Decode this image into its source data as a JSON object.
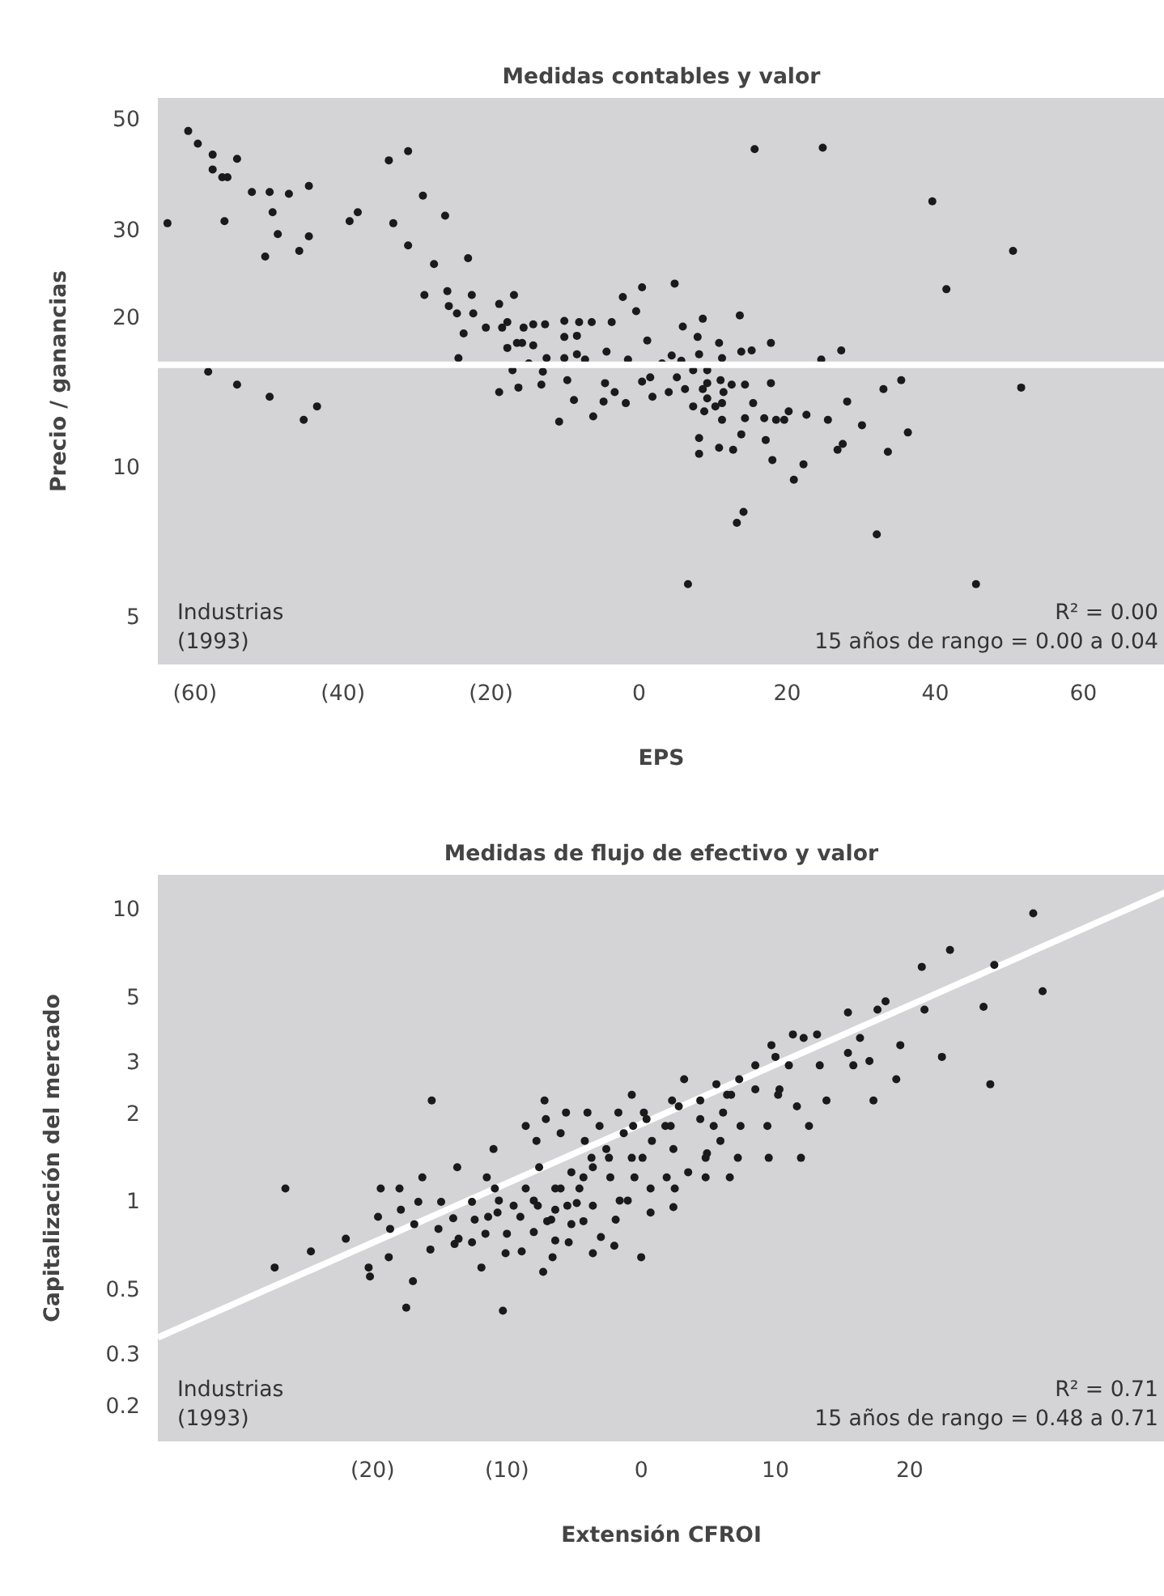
{
  "chart_data": [
    {
      "type": "scatter",
      "title": "Medidas contables y valor",
      "xlabel": "EPS",
      "ylabel": "Precio / ganancias",
      "log": "y",
      "grid": false,
      "xlim": [
        -65,
        71
      ],
      "ylim": [
        4,
        55
      ],
      "xticks": [
        {
          "value": -60,
          "label": "(60)"
        },
        {
          "value": -40,
          "label": "(40)"
        },
        {
          "value": -20,
          "label": "(20)"
        },
        0,
        20,
        40,
        60
      ],
      "yticks": [
        5,
        10,
        20,
        30,
        50
      ],
      "annotations": [
        "Industrias\n(1993)",
        "R² = 0.00\n15 años de rango = 0.00 a 0.04"
      ],
      "series": [
        {
          "marker": "circle",
          "color": "#1a1a1a",
          "x": [
            -63.7,
            -60.9,
            -59.6,
            -57.6,
            -57.6,
            -56.3,
            -55.6,
            -54.3,
            -56.0,
            -52.3,
            -49.9,
            -47.3,
            -44.6,
            -49.5,
            -48.8,
            -50.5,
            -45.9,
            -44.6,
            -39.1,
            -38.0,
            -33.8,
            -31.2,
            -29.2,
            -26.2,
            -33.2,
            -31.2,
            -27.7,
            -23.1,
            -29.0,
            -25.9,
            -25.7,
            -22.6,
            -22.4,
            -24.6,
            -23.7,
            -24.4,
            -20.7,
            -18.9,
            -16.9,
            -18.5,
            -17.8,
            -17.8,
            -16.5,
            -15.8,
            -15.6,
            -14.3,
            -12.7,
            -14.3,
            -14.9,
            -17.1,
            -18.9,
            -16.3,
            -13.2,
            -13.0,
            -12.5,
            -10.1,
            -8.1,
            -6.4,
            -3.7,
            -10.1,
            -8.4,
            -10.1,
            -8.4,
            -7.3,
            -9.7,
            -8.8,
            -10.8,
            -6.2,
            -4.8,
            -4.6,
            -3.3,
            -1.8,
            -4.4,
            -1.5,
            -2.2,
            0.4,
            -0.4,
            4.8,
            1.1,
            0.4,
            1.5,
            1.8,
            4.0,
            3.1,
            4.4,
            5.1,
            -58.2,
            -54.3,
            -49.9,
            -45.3,
            -43.5,
            15.6,
            24.8,
            39.6,
            50.5,
            41.5,
            5.9,
            8.6,
            7.9,
            10.8,
            13.6,
            5.7,
            8.1,
            11.2,
            13.8,
            15.2,
            17.8,
            24.6,
            27.3,
            7.3,
            9.2,
            6.2,
            8.6,
            9.2,
            11.0,
            12.5,
            14.3,
            17.8,
            33.0,
            35.4,
            7.3,
            8.8,
            9.2,
            10.3,
            11.2,
            11.4,
            15.4,
            14.3,
            11.2,
            16.9,
            18.5,
            19.6,
            20.2,
            22.6,
            25.5,
            28.1,
            30.1,
            8.1,
            8.1,
            10.8,
            12.7,
            13.8,
            17.1,
            18.0,
            20.9,
            22.2,
            26.8,
            27.5,
            33.6,
            36.3,
            51.6,
            13.2,
            14.1,
            32.1,
            6.6,
            45.5
          ],
          "values": [
            30.8,
            47.2,
            44.5,
            42.3,
            39.5,
            38.1,
            38.1,
            41.5,
            31.1,
            35.6,
            35.6,
            35.3,
            36.6,
            32.4,
            29.3,
            26.4,
            27.1,
            29.0,
            31.1,
            32.4,
            41.2,
            43.0,
            35.0,
            31.9,
            30.8,
            27.8,
            25.5,
            26.2,
            22.1,
            22.5,
            21.0,
            22.1,
            20.3,
            20.3,
            18.5,
            16.5,
            19.0,
            21.2,
            22.1,
            19.0,
            19.5,
            17.3,
            17.7,
            17.7,
            19.0,
            19.3,
            19.3,
            17.5,
            16.1,
            15.6,
            14.1,
            14.4,
            14.6,
            15.5,
            16.5,
            19.6,
            19.5,
            19.5,
            19.5,
            18.2,
            18.3,
            16.5,
            16.8,
            16.4,
            14.9,
            13.6,
            12.3,
            12.6,
            13.5,
            14.7,
            14.1,
            13.4,
            17.0,
            16.4,
            21.9,
            22.9,
            20.5,
            23.3,
            17.9,
            14.8,
            15.1,
            13.8,
            14.1,
            16.1,
            16.7,
            15.1,
            15.5,
            14.6,
            13.8,
            12.4,
            13.2,
            43.4,
            43.7,
            34.1,
            27.1,
            22.7,
            19.1,
            19.8,
            18.2,
            17.7,
            20.1,
            16.3,
            16.8,
            16.5,
            17.0,
            17.1,
            17.7,
            16.4,
            17.1,
            15.6,
            15.6,
            14.3,
            14.3,
            14.7,
            14.9,
            14.6,
            14.6,
            14.7,
            14.3,
            14.9,
            13.2,
            12.9,
            13.7,
            13.2,
            13.4,
            14.1,
            13.4,
            12.5,
            12.4,
            12.5,
            12.4,
            12.4,
            12.9,
            12.7,
            12.4,
            13.5,
            12.1,
            11.4,
            10.6,
            10.9,
            10.8,
            11.6,
            11.3,
            10.3,
            9.4,
            10.1,
            10.8,
            11.1,
            10.7,
            11.7,
            14.4,
            7.7,
            8.1,
            7.3,
            5.8,
            5.8
          ]
        },
        {
          "type": "line",
          "color": "#ffffff",
          "x": [
            -65,
            71
          ],
          "values": [
            16,
            16
          ]
        }
      ]
    },
    {
      "type": "scatter",
      "title": "Medidas de flujo de efectivo y valor",
      "xlabel": "Extensión CFROI",
      "ylabel": "Capitalización del mercado",
      "log": "y",
      "grid": false,
      "xlim": [
        -36,
        39
      ],
      "ylim": [
        0.15,
        13
      ],
      "xticks": [
        {
          "value": -20,
          "label": "(20)"
        },
        {
          "value": -10,
          "label": "(10)"
        },
        0,
        10,
        20
      ],
      "yticks": [
        0.2,
        0.3,
        0.5,
        1,
        2,
        3,
        5,
        10
      ],
      "annotations": [
        "Industrias\n(1993)",
        "R² = 0.71\n15 años de rango = 0.48 a 0.71"
      ],
      "series": [
        {
          "type": "line",
          "color": "#ffffff",
          "x": [
            -36,
            39
          ],
          "values": [
            0.34,
            11.3
          ]
        },
        {
          "marker": "circle",
          "color": "#1a1a1a",
          "x": [
            -15.6,
            -26.5,
            -7.2,
            -0.7,
            2.3,
            2.8,
            -8.6,
            -7.1,
            -5.6,
            -4.0,
            -1.7,
            0.2,
            -7.8,
            -6.0,
            -4.2,
            -3.1,
            -1.3,
            -0.6,
            0.4,
            1.8,
            2.2,
            -11.0,
            -13.7,
            -2.6,
            -2.4,
            -3.7,
            -0.7,
            0.1,
            0.8,
            2.4,
            -11.5,
            -10.9,
            -10.6,
            -16.3,
            -19.4,
            -18.0,
            -7.6,
            -5.2,
            -4.3,
            -3.6,
            -2.3,
            -0.5,
            1.9,
            2.5,
            0.7,
            -6.4,
            -6.0,
            -4.6,
            -8.6,
            -8.0,
            -1.6,
            -1.0,
            -9.5,
            -7.7,
            -6.4,
            -5.5,
            -4.8,
            -3.6,
            -19.6,
            -17.9,
            -16.6,
            -14.9,
            -12.6,
            -11.4,
            -12.4,
            -10.7,
            -18.7,
            -16.9,
            -15.1,
            -14.0,
            -9.0,
            -7.0,
            -6.7,
            -5.2,
            -4.3,
            -1.9,
            0.7,
            2.4,
            -8.0,
            -10.0,
            -11.6,
            -6.4,
            -3.0,
            -22.0,
            -13.6,
            29.2,
            23.0,
            26.3,
            20.9,
            29.9,
            21.1,
            25.5,
            18.2,
            17.6,
            15.4,
            19.3,
            16.3,
            15.4,
            17.0,
            15.8,
            22.4,
            11.3,
            12.1,
            13.1,
            9.7,
            10.0,
            11.0,
            13.3,
            8.5,
            19.0,
            26.0,
            17.3,
            13.8,
            3.2,
            5.6,
            7.3,
            6.4,
            6.7,
            8.5,
            10.3,
            10.2,
            11.6,
            12.5,
            4.4,
            6.1,
            4.4,
            5.4,
            5.9,
            7.4,
            9.4,
            4.8,
            4.9,
            7.2,
            9.5,
            11.9,
            3.5,
            4.8,
            6.6,
            -27.3,
            -24.6,
            -20.3,
            -20.2,
            -18.8,
            -17.5,
            -17.0,
            -15.7,
            -13.9,
            -12.6,
            -11.9,
            -10.3,
            -10.1,
            -8.9,
            -7.3,
            -6.6,
            -5.4,
            -3.6,
            -2.0,
            0
          ],
          "values": [
            2.2,
            1.1,
            2.2,
            2.3,
            2.2,
            2.1,
            1.8,
            1.9,
            2.0,
            2.0,
            2.0,
            2.0,
            1.6,
            1.7,
            1.6,
            1.8,
            1.7,
            1.8,
            1.9,
            1.8,
            1.8,
            1.5,
            1.3,
            1.5,
            1.4,
            1.4,
            1.4,
            1.4,
            1.6,
            1.5,
            1.2,
            1.1,
            1.0,
            1.2,
            1.1,
            1.1,
            1.3,
            1.25,
            1.2,
            1.3,
            1.2,
            1.2,
            1.2,
            1.1,
            1.1,
            1.1,
            1.1,
            1.1,
            1.1,
            1.0,
            1.0,
            1.0,
            0.96,
            0.96,
            0.93,
            0.96,
            0.98,
            0.96,
            0.88,
            0.93,
            0.99,
            0.99,
            0.99,
            0.88,
            0.86,
            0.91,
            0.8,
            0.83,
            0.8,
            0.87,
            0.88,
            0.85,
            0.86,
            0.83,
            0.85,
            0.86,
            0.91,
            0.95,
            0.78,
            0.77,
            0.77,
            0.73,
            0.75,
            0.74,
            0.74,
            9.6,
            7.2,
            6.4,
            6.3,
            5.2,
            4.5,
            4.6,
            4.8,
            4.5,
            4.4,
            3.4,
            3.6,
            3.2,
            3.0,
            2.9,
            3.1,
            3.7,
            3.6,
            3.7,
            3.4,
            3.1,
            2.9,
            2.9,
            2.9,
            2.6,
            2.5,
            2.2,
            2.2,
            2.6,
            2.5,
            2.6,
            2.3,
            2.3,
            2.4,
            2.4,
            2.3,
            2.1,
            1.8,
            2.2,
            2.0,
            1.9,
            1.8,
            1.6,
            1.8,
            1.8,
            1.4,
            1.45,
            1.4,
            1.4,
            1.4,
            1.25,
            1.2,
            1.2,
            0.59,
            0.67,
            0.59,
            0.55,
            0.64,
            0.43,
            0.53,
            0.68,
            0.71,
            0.72,
            0.59,
            0.42,
            0.66,
            0.67,
            0.57,
            0.64,
            0.72,
            0.66,
            0.7,
            0.64
          ]
        }
      ]
    }
  ]
}
